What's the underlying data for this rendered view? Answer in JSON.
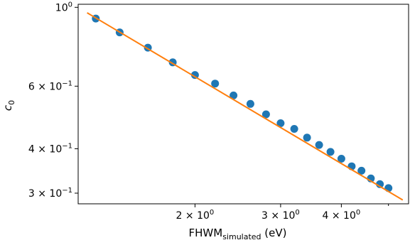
{
  "chart_data": {
    "type": "scatter",
    "title": "",
    "xlabel": {
      "main": "FHWM",
      "subscript": "simulated",
      "suffix": " (eV)"
    },
    "ylabel": {
      "main": "c",
      "subscript": "0"
    },
    "xscale": "log",
    "yscale": "log",
    "xlim": [
      1.15,
      5.5
    ],
    "ylim": [
      0.28,
      1.02
    ],
    "grid": false,
    "legend": "none",
    "x_ticks": [
      {
        "value": 2,
        "label_base": "2 × 10",
        "label_exp": "0"
      },
      {
        "value": 3,
        "label_base": "3 × 10",
        "label_exp": "0"
      },
      {
        "value": 4,
        "label_base": "4 × 10",
        "label_exp": "0"
      }
    ],
    "x_minor_ticks": [
      5
    ],
    "y_ticks": [
      {
        "value": 1.0,
        "label_base": "10",
        "label_exp": "0"
      },
      {
        "value": 0.6,
        "label_base": "6 × 10",
        "label_exp": "−1"
      },
      {
        "value": 0.4,
        "label_base": "4 × 10",
        "label_exp": "−1"
      },
      {
        "value": 0.3,
        "label_base": "3 × 10",
        "label_exp": "−1"
      }
    ],
    "series": [
      {
        "kind": "scatter",
        "color": "#1f77b4",
        "x": [
          1.25,
          1.4,
          1.6,
          1.8,
          2.0,
          2.2,
          2.4,
          2.6,
          2.8,
          3.0,
          3.2,
          3.4,
          3.6,
          3.8,
          4.0,
          4.2,
          4.4,
          4.6,
          4.8,
          5.0
        ],
        "y": [
          0.93,
          0.85,
          0.77,
          0.7,
          0.645,
          0.61,
          0.565,
          0.535,
          0.5,
          0.472,
          0.455,
          0.43,
          0.41,
          0.392,
          0.375,
          0.357,
          0.347,
          0.33,
          0.318,
          0.31
        ]
      },
      {
        "kind": "line",
        "color": "#ff7f0e",
        "x": [
          1.2,
          5.35
        ],
        "y": [
          0.965,
          0.287
        ]
      }
    ]
  }
}
